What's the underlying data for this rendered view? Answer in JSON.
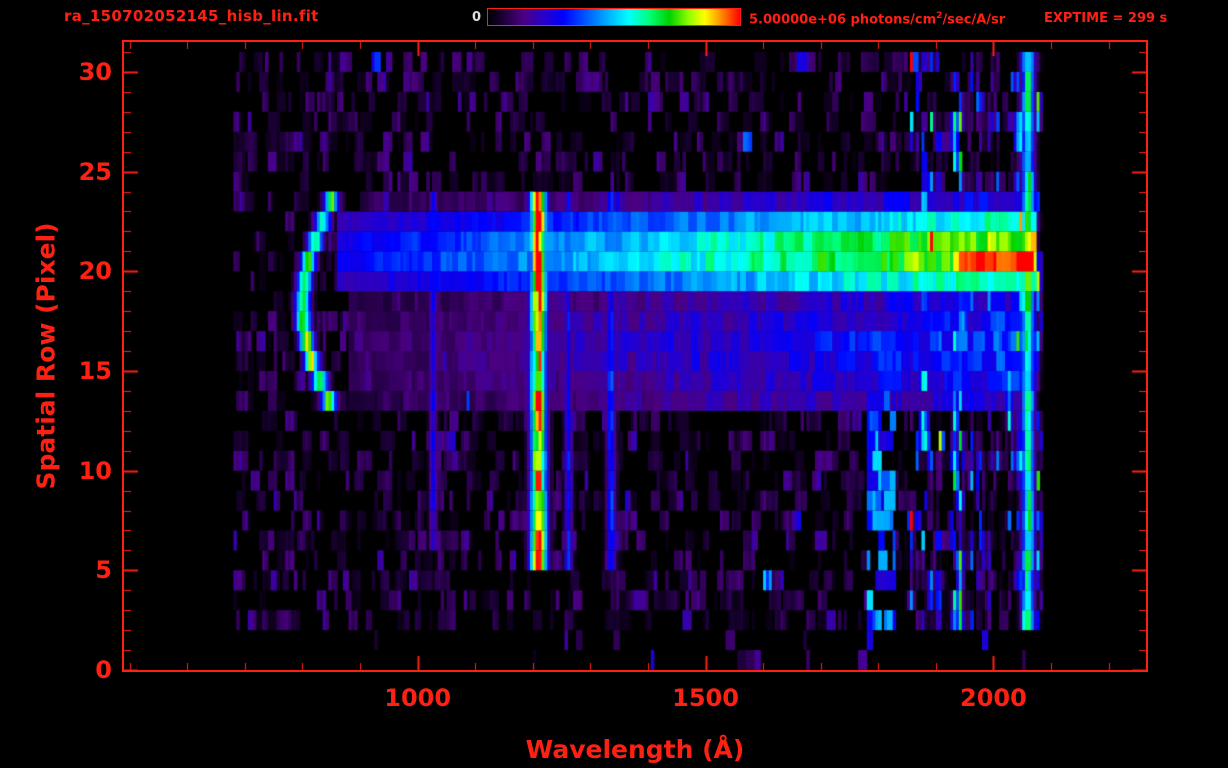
{
  "theme": {
    "background": "#000000",
    "accent": "#ff2014",
    "colorbar_min_label_color": "#e0e0e0"
  },
  "header": {
    "filename": "ra_150702052145_hisb_lin.fit",
    "exptime": "EXPTIME = 299 s"
  },
  "colorbar": {
    "min_label": "0",
    "max_value": "5.00000e+06",
    "unit_prefix": " photons/cm",
    "unit_sup": "2",
    "unit_suffix": "/sec/A/sr"
  },
  "chart_data": {
    "type": "heatmap",
    "title": "",
    "xlabel": "Wavelength (Å)",
    "ylabel": "Spatial Row (Pixel)",
    "xlim": [
      490,
      2265
    ],
    "ylim": [
      0,
      31.5
    ],
    "x_major_ticks": [
      1000,
      1500,
      2000
    ],
    "x_minor_tick_step": 100,
    "y_major_ticks": [
      0,
      5,
      10,
      15,
      20,
      25,
      30
    ],
    "y_minor_tick_step": 1,
    "colorbar_scale": {
      "min": 0,
      "max": 5000000,
      "units": "photons/cm^2/sec/A/sr"
    },
    "grid": false,
    "colormap": {
      "name": "rainbow-black-to-red",
      "stops": [
        {
          "t": 0.0,
          "color": "#000000"
        },
        {
          "t": 0.06,
          "color": "#1c0038"
        },
        {
          "t": 0.14,
          "color": "#4b0082"
        },
        {
          "t": 0.22,
          "color": "#2a00c8"
        },
        {
          "t": 0.3,
          "color": "#0000ff"
        },
        {
          "t": 0.4,
          "color": "#0064ff"
        },
        {
          "t": 0.48,
          "color": "#00b4ff"
        },
        {
          "t": 0.56,
          "color": "#00ffff"
        },
        {
          "t": 0.64,
          "color": "#00ff78"
        },
        {
          "t": 0.72,
          "color": "#00d200"
        },
        {
          "t": 0.8,
          "color": "#96ff00"
        },
        {
          "t": 0.86,
          "color": "#ffff00"
        },
        {
          "t": 0.92,
          "color": "#ff9600"
        },
        {
          "t": 1.0,
          "color": "#ff0000"
        }
      ]
    },
    "data_extent": {
      "wavelength": [
        680,
        2085
      ],
      "rows": [
        2,
        30.5
      ]
    },
    "features": [
      {
        "type": "noise",
        "name": "background-speckle",
        "wavelength": [
          680,
          2085
        ],
        "rows": [
          2,
          30.5
        ],
        "fill": 0.62,
        "amplitude": 0.16,
        "power": 2.2
      },
      {
        "type": "noise",
        "name": "right-column-streaks",
        "wavelength": [
          1845,
          2085
        ],
        "rows": [
          2,
          30.5
        ],
        "fill": 0.8,
        "amplitude": 0.36,
        "power": 1.6,
        "column_structure": 1
      },
      {
        "type": "sparse",
        "name": "bottom-sparse-dots",
        "wavelength": [
          680,
          2085
        ],
        "rows": [
          0,
          2
        ],
        "fill": 0.045,
        "amplitude": 0.28
      },
      {
        "type": "hband",
        "name": "secondary-band",
        "rows": [
          13.2,
          19.2
        ],
        "wavelength": [
          880,
          2075
        ],
        "intensity": [
          0.1,
          0.38
        ],
        "speckle": 0.55
      },
      {
        "type": "hband",
        "name": "upper-dim-band",
        "rows": [
          22.6,
          24.2
        ],
        "wavelength": [
          900,
          2075
        ],
        "intensity": [
          0.08,
          0.3
        ],
        "speckle": 0.6
      },
      {
        "type": "hband",
        "name": "main-continuum-band",
        "rows": [
          19.2,
          22.6
        ],
        "wavelength": [
          860,
          2075
        ],
        "intensity": [
          0.3,
          0.92
        ],
        "speckle": 0.25,
        "hotspot": {
          "wavelength": [
            1930,
            2070
          ],
          "rows": [
            19.6,
            21.0
          ],
          "boost": 0.18
        }
      },
      {
        "type": "vline",
        "name": "lyman-beta-1025",
        "center": 1027,
        "sigma": 5,
        "rows": [
          6,
          24
        ],
        "intensity": 0.26
      },
      {
        "type": "vline",
        "name": "lyman-alpha-1216",
        "center": 1210,
        "sigma": 10,
        "rows": [
          5,
          24
        ],
        "intensity": 0.88,
        "row_peaks": [
          {
            "row": 21.5,
            "sigma": 2.2,
            "boost": 0.16
          },
          {
            "row": 6.6,
            "sigma": 1.6,
            "boost": 0.12
          }
        ]
      },
      {
        "type": "vline",
        "name": "emission-line-1260",
        "center": 1262,
        "sigma": 5,
        "rows": [
          5,
          24
        ],
        "intensity": 0.3
      },
      {
        "type": "vline",
        "name": "emission-line-1335",
        "center": 1336,
        "sigma": 6,
        "rows": [
          5,
          24
        ],
        "intensity": 0.34
      },
      {
        "type": "arc",
        "name": "left-airglow-arc",
        "rows": [
          13,
          23.6
        ],
        "wavelength_top": 852,
        "wavelength_mid": 800,
        "half_width": 16,
        "intensity": 0.72
      },
      {
        "type": "vband",
        "name": "cyan-patch-1800",
        "wavelength": [
          1778,
          1832
        ],
        "rows": [
          2,
          13.5
        ],
        "intensity": 0.4,
        "fill": 0.7
      },
      {
        "type": "vline",
        "name": "right-edge-2062",
        "center": 2060,
        "sigma": 8,
        "rows": [
          2,
          30.5
        ],
        "intensity": 0.62,
        "row_peaks": [
          {
            "row": 20.3,
            "sigma": 1.5,
            "boost": 0.3
          }
        ]
      }
    ]
  }
}
